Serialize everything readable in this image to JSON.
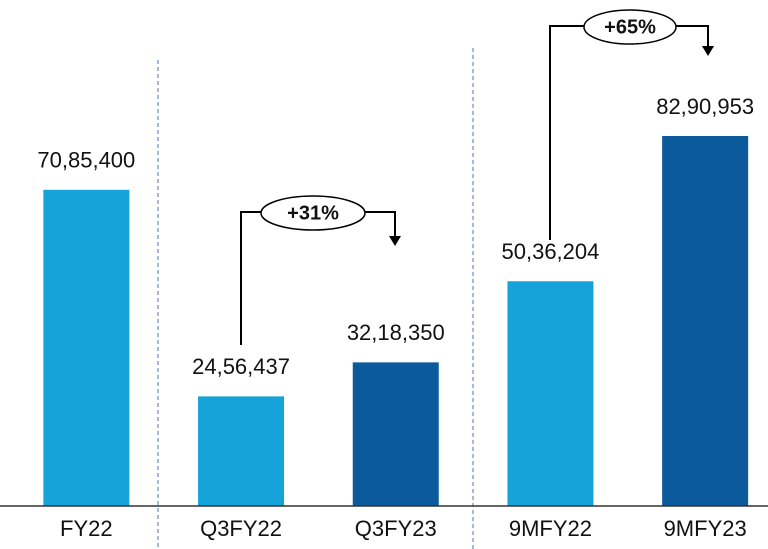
{
  "chart_data": {
    "type": "bar",
    "categories": [
      "FY22",
      "Q3FY22",
      "Q3FY23",
      "9MFY22",
      "9MFY23"
    ],
    "values": [
      7085400,
      2456437,
      3218350,
      5036204,
      8290953
    ],
    "value_labels": [
      "70,85,400",
      "24,56,437",
      "32,18,350",
      "50,36,204",
      "82,90,953"
    ],
    "colors": [
      "#16a3da",
      "#16a3da",
      "#0b5a9c",
      "#16a3da",
      "#0b5a9c"
    ],
    "annotations": [
      "+31%",
      "+65%"
    ]
  }
}
